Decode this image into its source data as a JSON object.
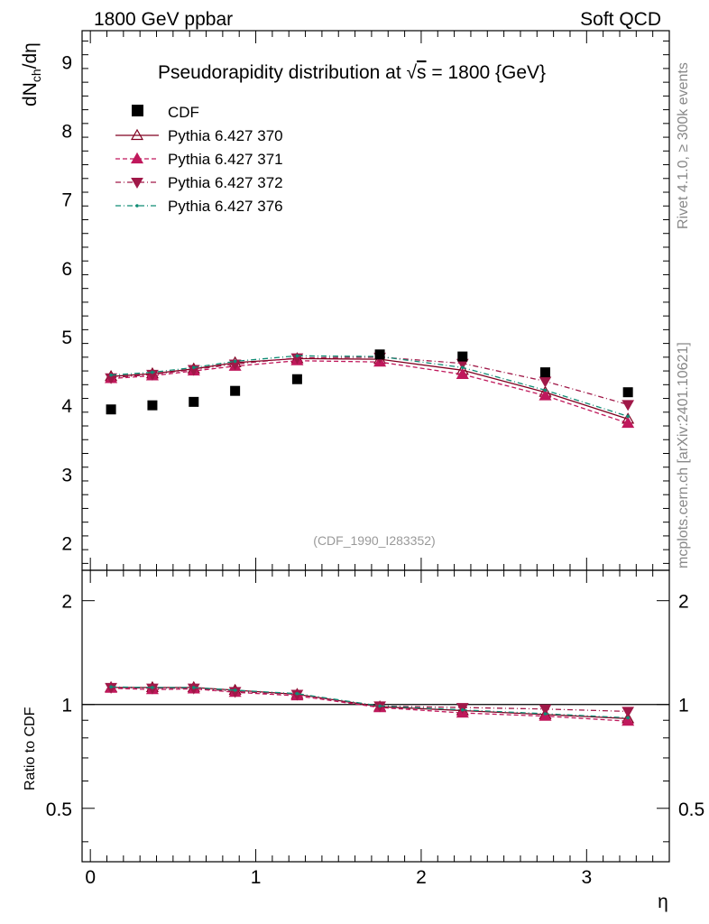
{
  "header": {
    "left": "1800 GeV ppbar",
    "right": "Soft QCD"
  },
  "side_labels": {
    "top": "Rivet 4.1.0, ≥ 300k events",
    "bottom": "mcplots.cern.ch [arXiv:2401.10621]"
  },
  "chart_data": {
    "type": "scatter",
    "title": "Pseudorapidity distribution at √s = 1800 {GeV}",
    "title_parts": {
      "prefix": "Pseudorapidity distribution at ",
      "sqrt": "√",
      "var": "s",
      "suffix": " = 1800 {GeV}"
    },
    "xlabel": "η",
    "ylabel_parts": {
      "main": "dN",
      "sub": "ch",
      "tail": "/dη"
    },
    "ratio_ylabel": "Ratio to CDF",
    "watermark": "(CDF_1990_I283352)",
    "xlim": [
      -0.05,
      3.5
    ],
    "ylim": [
      1.6,
      9.45
    ],
    "ratio_ylim": [
      0.35,
      2.45
    ],
    "x_ticks": [
      0,
      1,
      2,
      3
    ],
    "x_tick_labels": [
      "0",
      "1",
      "2",
      "3"
    ],
    "y_ticks": [
      2,
      3,
      4,
      5,
      6,
      7,
      8,
      9
    ],
    "y_tick_labels": [
      "2",
      "3",
      "4",
      "5",
      "6",
      "7",
      "8",
      "9"
    ],
    "ratio_ticks": [
      0.5,
      1,
      2
    ],
    "ratio_tick_labels": [
      "0.5",
      "1",
      "2"
    ],
    "x": [
      0.125,
      0.375,
      0.625,
      0.875,
      1.25,
      1.75,
      2.25,
      2.75,
      3.25
    ],
    "data": {
      "name": "CDF",
      "values": [
        3.94,
        4.0,
        4.05,
        4.21,
        4.38,
        4.74,
        4.71,
        4.48,
        4.19
      ]
    },
    "series": [
      {
        "name": "Pythia 6.427 370",
        "color": "#800020",
        "dash": "",
        "marker": "triangle-up-open",
        "values": [
          4.42,
          4.46,
          4.53,
          4.62,
          4.68,
          4.67,
          4.51,
          4.19,
          3.8
        ],
        "ratio": [
          1.12,
          1.12,
          1.12,
          1.1,
          1.07,
          0.985,
          0.96,
          0.935,
          0.91
        ]
      },
      {
        "name": "Pythia 6.427 371",
        "color": "#c0185c",
        "dash": "5,3",
        "marker": "triangle-up",
        "values": [
          4.39,
          4.43,
          4.5,
          4.57,
          4.65,
          4.63,
          4.45,
          4.14,
          3.74
        ],
        "ratio": [
          1.115,
          1.105,
          1.11,
          1.085,
          1.06,
          0.98,
          0.945,
          0.925,
          0.895
        ]
      },
      {
        "name": "Pythia 6.427 372",
        "color": "#a01848",
        "dash": "6,3,1,3",
        "marker": "triangle-down",
        "values": [
          4.4,
          4.45,
          4.52,
          4.6,
          4.69,
          4.7,
          4.61,
          4.35,
          4.01
        ],
        "ratio": [
          1.12,
          1.115,
          1.115,
          1.09,
          1.07,
          0.99,
          0.98,
          0.97,
          0.955
        ]
      },
      {
        "name": "Pythia 6.427 376",
        "color": "#0f8c74",
        "dash": "6,3,1,3",
        "marker": "dot",
        "values": [
          4.44,
          4.48,
          4.55,
          4.64,
          4.72,
          4.71,
          4.55,
          4.22,
          3.84
        ],
        "ratio": [
          1.125,
          1.12,
          1.12,
          1.1,
          1.075,
          0.99,
          0.965,
          0.94,
          0.915
        ]
      }
    ]
  }
}
